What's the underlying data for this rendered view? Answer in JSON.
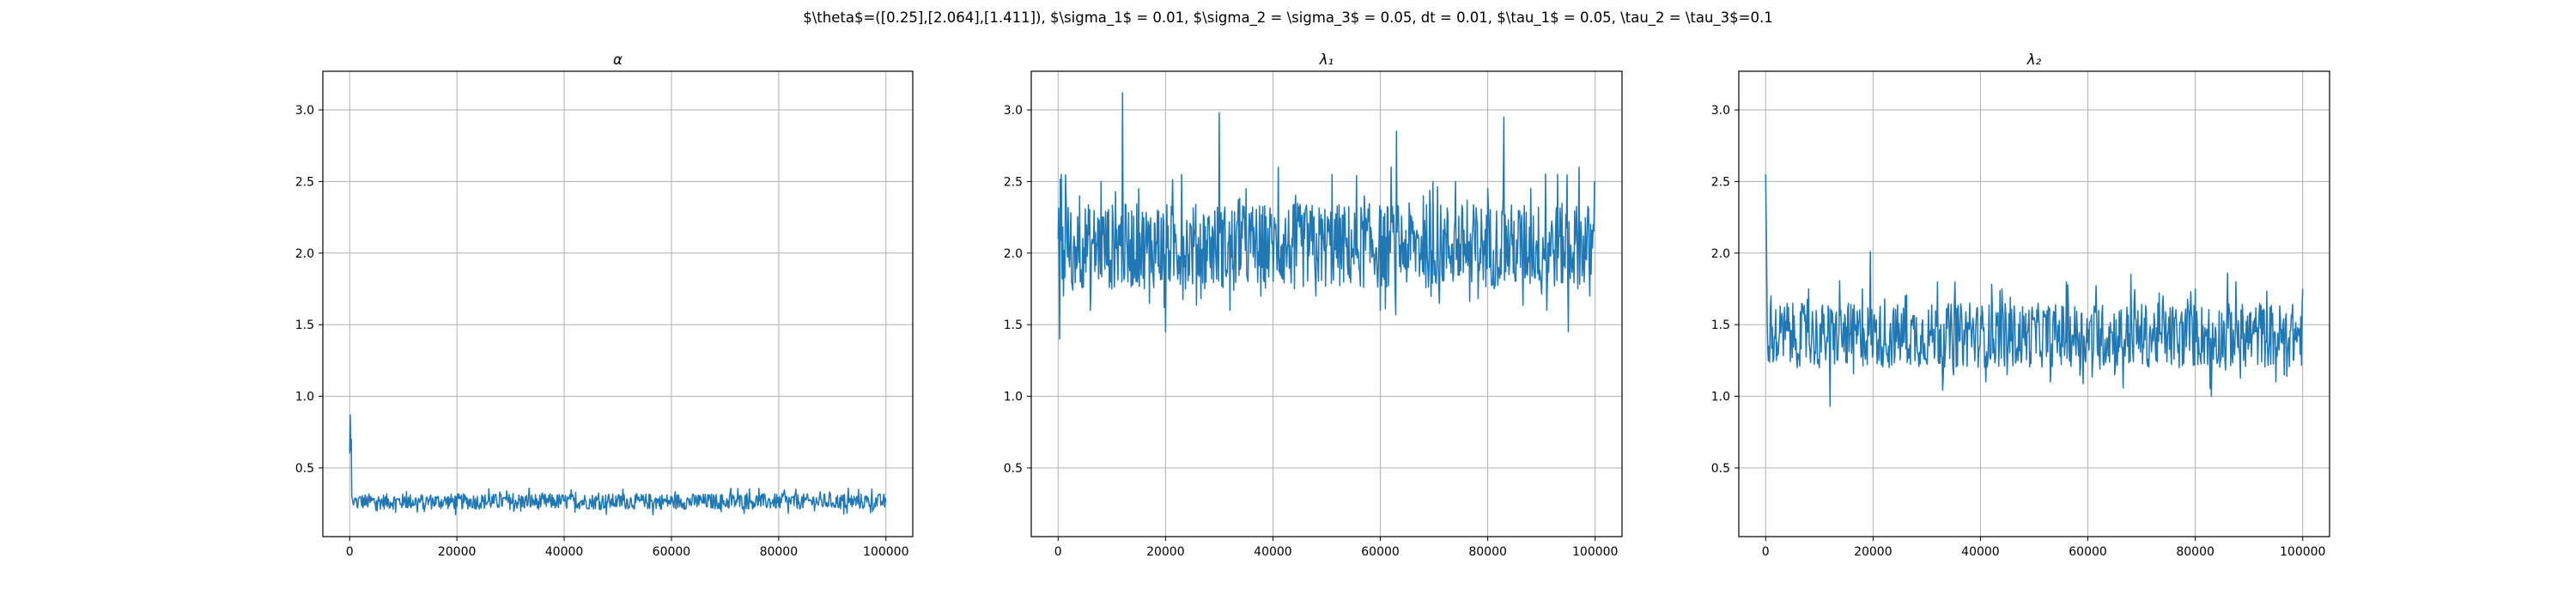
{
  "figure": {
    "suptitle": "$\\theta$=([0.25],[2.064],[1.411]), $\\sigma_1$ = 0.01, $\\sigma_2 = \\sigma_3$ = 0.05, dt = 0.01, $\\tau_1$ = 0.05, \\tau_2 = \\tau_3$=0.1"
  },
  "colors": {
    "series": "#1f77b4",
    "grid": "#b0b0b0"
  },
  "chart_data": [
    {
      "type": "line",
      "title": "α",
      "xlabel": "",
      "ylabel": "",
      "xlim": [
        -5000,
        105000
      ],
      "ylim": [
        0.02,
        3.27
      ],
      "xticks": [
        0,
        20000,
        40000,
        60000,
        80000,
        100000
      ],
      "xtick_labels": [
        "0",
        "20000",
        "40000",
        "60000",
        "80000",
        "100000"
      ],
      "yticks": [
        0.5,
        1.0,
        1.5,
        2.0,
        2.5,
        3.0
      ],
      "ytick_labels": [
        "0.5",
        "1.0",
        "1.5",
        "2.0",
        "2.5",
        "3.0"
      ],
      "grid": true,
      "series": [
        {
          "x": [
            0,
            100,
            200,
            300,
            400,
            500,
            700,
            1000,
            1500,
            2000,
            3000,
            5000,
            10000,
            15000,
            20000,
            25000,
            30000,
            35000,
            40000,
            45000,
            50000,
            55000,
            60000,
            65000,
            70000,
            75000,
            80000,
            85000,
            90000,
            95000,
            100000
          ],
          "values": [
            0.6,
            0.87,
            0.62,
            0.7,
            0.3,
            0.28,
            0.24,
            0.29,
            0.22,
            0.3,
            0.24,
            0.27,
            0.24,
            0.3,
            0.23,
            0.26,
            0.29,
            0.22,
            0.27,
            0.25,
            0.29,
            0.23,
            0.26,
            0.31,
            0.24,
            0.27,
            0.23,
            0.29,
            0.25,
            0.27,
            0.26
          ],
          "band_low": 0.21,
          "band_high": 0.32
        }
      ]
    },
    {
      "type": "line",
      "title": "λ₁",
      "xlabel": "",
      "ylabel": "",
      "xlim": [
        -5000,
        105000
      ],
      "ylim": [
        0.02,
        3.27
      ],
      "xticks": [
        0,
        20000,
        40000,
        60000,
        80000,
        100000
      ],
      "xtick_labels": [
        "0",
        "20000",
        "40000",
        "60000",
        "80000",
        "100000"
      ],
      "yticks": [
        0.5,
        1.0,
        1.5,
        2.0,
        2.5,
        3.0
      ],
      "ytick_labels": [
        "0.5",
        "1.0",
        "1.5",
        "2.0",
        "2.5",
        "3.0"
      ],
      "grid": true,
      "series": [
        {
          "x": [
            0,
            300,
            600,
            1000,
            1500,
            2500,
            4000,
            6000,
            8000,
            10000,
            11500,
            12000,
            13000,
            15000,
            17000,
            18500,
            20000,
            23000,
            26000,
            28000,
            30000,
            32000,
            35000,
            38000,
            41000,
            44000,
            46000,
            48000,
            51000,
            54000,
            57000,
            60000,
            62000,
            63000,
            65000,
            68000,
            71000,
            74000,
            77000,
            80000,
            82000,
            83000,
            85000,
            88000,
            91000,
            93000,
            95000,
            97000,
            99000,
            100000
          ],
          "values": [
            2.1,
            1.4,
            2.55,
            1.7,
            2.35,
            1.8,
            2.4,
            1.6,
            2.5,
            1.75,
            2.2,
            3.12,
            1.8,
            2.45,
            1.65,
            2.3,
            1.45,
            2.55,
            1.85,
            2.2,
            2.98,
            1.6,
            2.45,
            1.9,
            2.6,
            1.75,
            2.3,
            1.7,
            2.55,
            1.85,
            2.4,
            1.6,
            2.6,
            2.85,
            1.9,
            2.4,
            1.65,
            2.5,
            1.8,
            2.45,
            1.9,
            2.95,
            1.85,
            2.45,
            1.6,
            2.55,
            1.45,
            2.6,
            1.7,
            2.5
          ],
          "band_low": 1.75,
          "band_high": 2.35
        }
      ]
    },
    {
      "type": "line",
      "title": "λ₂",
      "xlabel": "",
      "ylabel": "",
      "xlim": [
        -5000,
        105000
      ],
      "ylim": [
        0.02,
        3.27
      ],
      "xticks": [
        0,
        20000,
        40000,
        60000,
        80000,
        100000
      ],
      "xtick_labels": [
        "0",
        "20000",
        "40000",
        "60000",
        "80000",
        "100000"
      ],
      "yticks": [
        0.5,
        1.0,
        1.5,
        2.0,
        2.5,
        3.0
      ],
      "ytick_labels": [
        "0.5",
        "1.0",
        "1.5",
        "2.0",
        "2.5",
        "3.0"
      ],
      "grid": true,
      "series": [
        {
          "x": [
            0,
            150,
            300,
            600,
            1000,
            2000,
            4000,
            6000,
            8000,
            10000,
            12000,
            14000,
            16000,
            18000,
            19500,
            20500,
            23000,
            26000,
            29000,
            32000,
            35000,
            38000,
            41000,
            44000,
            47000,
            50000,
            53000,
            56000,
            59000,
            62000,
            65000,
            68000,
            71000,
            74000,
            77000,
            80000,
            83000,
            86000,
            89000,
            92000,
            95000,
            98000,
            100000
          ],
          "values": [
            2.55,
            2.1,
            1.5,
            1.35,
            1.7,
            1.25,
            1.65,
            1.3,
            1.75,
            1.2,
            0.93,
            1.6,
            1.3,
            1.75,
            2.01,
            1.5,
            1.2,
            1.7,
            1.3,
            1.8,
            1.15,
            1.65,
            1.1,
            1.75,
            1.25,
            1.55,
            1.1,
            1.8,
            1.3,
            1.6,
            1.15,
            1.85,
            1.25,
            1.7,
            1.2,
            1.75,
            1.0,
            1.86,
            1.25,
            1.65,
            1.1,
            1.55,
            1.75
          ],
          "band_low": 1.2,
          "band_high": 1.65
        }
      ]
    }
  ]
}
